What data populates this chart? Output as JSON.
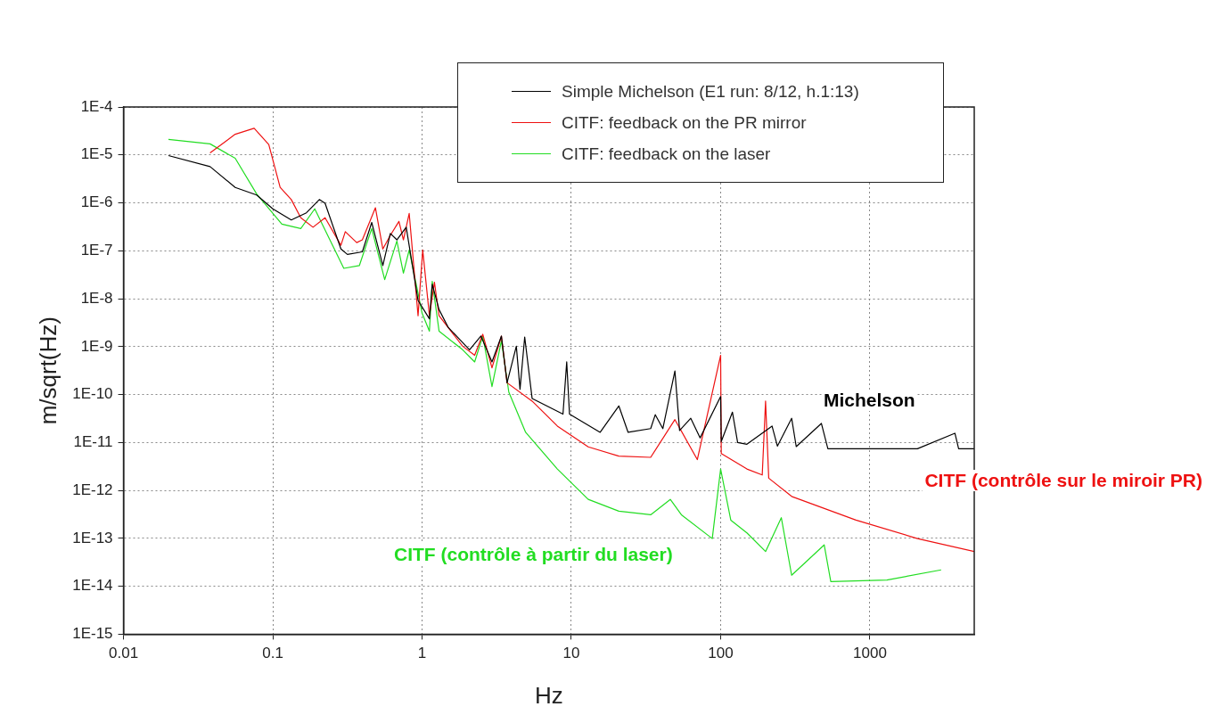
{
  "chart_data": {
    "type": "line",
    "xlabel": "Hz",
    "ylabel": "m/sqrt(Hz)",
    "log": "xy",
    "grid": true,
    "legend": "top right",
    "marker": "none",
    "line_style": "solid",
    "xlim": [
      0.01,
      5000
    ],
    "xticks": [
      0.01,
      0.1,
      1,
      10,
      100,
      1000
    ],
    "ylim": [
      1e-15,
      0.0001
    ],
    "yticks": [
      {
        "value": 0.0001,
        "label": "1E-4"
      },
      {
        "value": 1e-05,
        "label": "1E-5"
      },
      {
        "value": 1e-06,
        "label": "1E-6"
      },
      {
        "value": 1e-07,
        "label": "1E-7"
      },
      {
        "value": 1e-08,
        "label": "1E-8"
      },
      {
        "value": 1e-09,
        "label": "1E-9"
      },
      {
        "value": 1e-10,
        "label": "1E-10"
      },
      {
        "value": 1e-11,
        "label": "1E-11"
      },
      {
        "value": 1e-12,
        "label": "1E-12"
      },
      {
        "value": 1e-13,
        "label": "1E-13"
      },
      {
        "value": 1e-14,
        "label": "1E-14"
      },
      {
        "value": 1e-15,
        "label": "1E-15"
      }
    ],
    "series": [
      {
        "name": "Simple Michelson (E1 run: 8/12, h.1:13)",
        "color": "#000000",
        "x": [
          0.02,
          0.038,
          0.056,
          0.078,
          0.1,
          0.133,
          0.168,
          0.205,
          0.224,
          0.286,
          0.316,
          0.398,
          0.46,
          0.546,
          0.613,
          0.678,
          0.783,
          0.94,
          1.12,
          1.17,
          1.3,
          1.5,
          2.08,
          2.48,
          2.94,
          3.4,
          3.71,
          4.28,
          4.53,
          4.87,
          5.46,
          8.79,
          9.31,
          9.72,
          15.6,
          20.8,
          24,
          34,
          36.5,
          41,
          49.4,
          53.1,
          63.1,
          72.9,
          100,
          101,
          120,
          130,
          150,
          221,
          240,
          299,
          321,
          473,
          523,
          806,
          2080,
          3710,
          3930,
          5000
        ],
        "values": [
          9.7e-06,
          5.7e-06,
          2.1e-06,
          1.46e-06,
          7.5e-07,
          4.4e-07,
          6.2e-07,
          1.17e-06,
          9.8e-07,
          1.09e-07,
          8.4e-08,
          9.5e-08,
          3.9e-07,
          4.9e-08,
          2.3e-07,
          1.69e-07,
          3.1e-07,
          9.2e-09,
          3.8e-09,
          2e-08,
          5.9e-09,
          2.5e-09,
          8.6e-10,
          1.66e-09,
          4.8e-10,
          1.66e-09,
          1.76e-10,
          1.02e-09,
          1.29e-10,
          1.59e-09,
          8.3e-11,
          3.9e-11,
          4.8e-10,
          3.9e-11,
          1.63e-11,
          5.8e-11,
          1.63e-11,
          1.95e-11,
          3.8e-11,
          1.95e-11,
          3.1e-10,
          1.78e-11,
          3.2e-11,
          1.25e-11,
          9.1e-11,
          1.05e-11,
          4.3e-11,
          1e-11,
          9.2e-12,
          2.2e-11,
          8.4e-12,
          3.2e-11,
          8.2e-12,
          2.5e-11,
          7.4e-12,
          7.4e-12,
          7.4e-12,
          1.56e-11,
          7.4e-12,
          7.4e-12
        ]
      },
      {
        "name": "CITF: feedback on the PR mirror",
        "color": "#ee1111",
        "x": [
          0.038,
          0.056,
          0.075,
          0.094,
          0.112,
          0.133,
          0.154,
          0.186,
          0.224,
          0.286,
          0.306,
          0.365,
          0.398,
          0.487,
          0.546,
          0.613,
          0.7,
          0.75,
          0.82,
          0.94,
          1.01,
          1.12,
          1.21,
          1.3,
          1.87,
          2.25,
          2.55,
          2.94,
          3.4,
          3.71,
          5.46,
          8.06,
          12.97,
          20.8,
          34,
          49.4,
          69.8,
          100,
          101,
          150,
          190,
          200,
          210,
          299,
          806,
          2080,
          5000
        ],
        "values": [
          1.1e-05,
          2.7e-05,
          3.6e-05,
          1.64e-05,
          2.1e-06,
          1.17e-06,
          4.9e-07,
          3.1e-07,
          4.9e-07,
          1.3e-07,
          2.5e-07,
          1.48e-07,
          1.69e-07,
          7.9e-07,
          1.09e-07,
          2.1e-07,
          4.1e-07,
          1.69e-07,
          6e-07,
          4.4e-09,
          1.04e-07,
          4.4e-09,
          2.2e-08,
          4.4e-09,
          1.02e-09,
          6.6e-10,
          1.81e-09,
          3.6e-10,
          1.66e-09,
          1.76e-10,
          7.3e-11,
          2.2e-11,
          8.1e-12,
          5.2e-12,
          4.9e-12,
          3e-11,
          4.4e-12,
          6.6e-10,
          5.9e-12,
          2.8e-12,
          2.1e-12,
          7.3e-11,
          1.8e-12,
          7.5e-13,
          2.4e-13,
          9.9e-14,
          5.3e-14
        ]
      },
      {
        "name": "CITF: feedback on the laser",
        "color": "#22dd22",
        "x": [
          0.02,
          0.038,
          0.056,
          0.078,
          0.115,
          0.154,
          0.191,
          0.299,
          0.38,
          0.46,
          0.562,
          0.678,
          0.75,
          0.82,
          1,
          1.12,
          1.17,
          1.3,
          1.87,
          2.25,
          2.55,
          2.94,
          3.4,
          3.81,
          4.94,
          8.06,
          12.97,
          20.8,
          34,
          46,
          54.6,
          87.9,
          100,
          117,
          150,
          200,
          255,
          299,
          494,
          547,
          1300,
          3000
        ],
        "values": [
          2.1e-05,
          1.7e-05,
          8.5e-06,
          1.53e-06,
          3.6e-07,
          2.9e-07,
          7.5e-07,
          4.3e-08,
          4.9e-08,
          2.9e-07,
          2.5e-08,
          1.6e-07,
          3.4e-08,
          1.04e-07,
          5e-09,
          2.1e-09,
          2.3e-08,
          2.1e-09,
          8.6e-10,
          4.8e-10,
          1.66e-09,
          1.47e-10,
          1.33e-09,
          1.13e-10,
          1.63e-11,
          2.8e-12,
          6.5e-13,
          3.7e-13,
          3.1e-13,
          6.5e-13,
          3.1e-13,
          9.9e-14,
          2.8e-12,
          2.4e-13,
          1.3e-13,
          5.3e-14,
          2.7e-13,
          1.7e-14,
          7.3e-14,
          1.25e-14,
          1.35e-14,
          2.2e-14
        ]
      }
    ],
    "annotations": [
      "Michelson",
      "CITF (contrôle sur le miroir PR)",
      "CITF (contrôle à partir du laser)"
    ]
  }
}
